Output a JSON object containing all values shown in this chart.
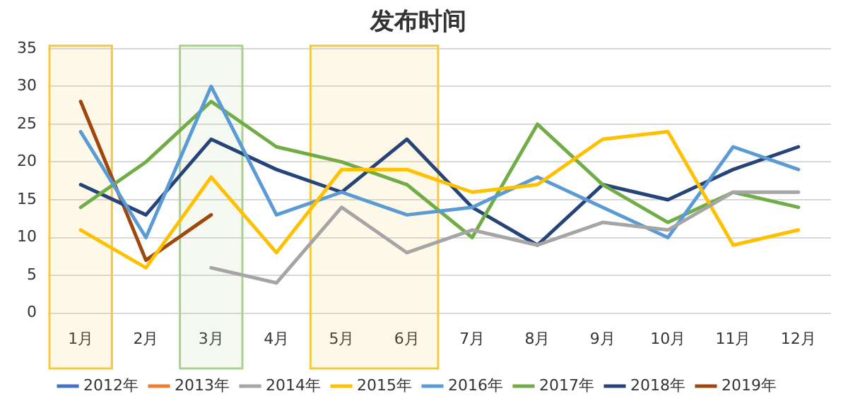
{
  "chart_data": {
    "type": "line",
    "title": "发布时间",
    "categories": [
      "1月",
      "2月",
      "3月",
      "4月",
      "5月",
      "6月",
      "7月",
      "8月",
      "9月",
      "10月",
      "11月",
      "12月"
    ],
    "series": [
      {
        "name": "2012年",
        "color": "#4472c4",
        "values": [
          null,
          null,
          null,
          null,
          null,
          null,
          null,
          null,
          null,
          null,
          null,
          null
        ]
      },
      {
        "name": "2013年",
        "color": "#ed7d31",
        "values": [
          null,
          null,
          null,
          null,
          null,
          null,
          null,
          null,
          null,
          null,
          null,
          null
        ]
      },
      {
        "name": "2014年",
        "color": "#a5a5a5",
        "values": [
          null,
          null,
          6,
          4,
          14,
          8,
          11,
          9,
          12,
          11,
          16,
          16
        ]
      },
      {
        "name": "2015年",
        "color": "#ffc000",
        "values": [
          11,
          6,
          18,
          8,
          19,
          19,
          16,
          17,
          23,
          24,
          9,
          11
        ]
      },
      {
        "name": "2016年",
        "color": "#5b9bd5",
        "values": [
          24,
          10,
          30,
          13,
          16,
          13,
          14,
          18,
          14,
          10,
          22,
          19
        ]
      },
      {
        "name": "2017年",
        "color": "#70ad47",
        "values": [
          14,
          20,
          28,
          22,
          20,
          17,
          10,
          25,
          17,
          12,
          16,
          14
        ]
      },
      {
        "name": "2018年",
        "color": "#264478",
        "values": [
          17,
          13,
          23,
          19,
          16,
          23,
          14,
          9,
          17,
          15,
          19,
          22
        ]
      },
      {
        "name": "2019年",
        "color": "#9e480e",
        "values": [
          28,
          7,
          13,
          null,
          null,
          null,
          null,
          null,
          null,
          null,
          null,
          null
        ]
      }
    ],
    "ylim": [
      0,
      35
    ],
    "yticks": [
      0,
      5,
      10,
      15,
      20,
      25,
      30,
      35
    ],
    "bands": [
      {
        "axis": "x",
        "from": "1月",
        "to": "1月",
        "color": "#f5c842"
      },
      {
        "axis": "x",
        "from": "3月",
        "to": "3月",
        "color": "#a9d18e"
      },
      {
        "axis": "x",
        "from": "5月",
        "to": "6月",
        "color": "#f5c842"
      }
    ],
    "grid": "y",
    "legend": "bottom",
    "marker": "none",
    "line_style": "solid"
  }
}
